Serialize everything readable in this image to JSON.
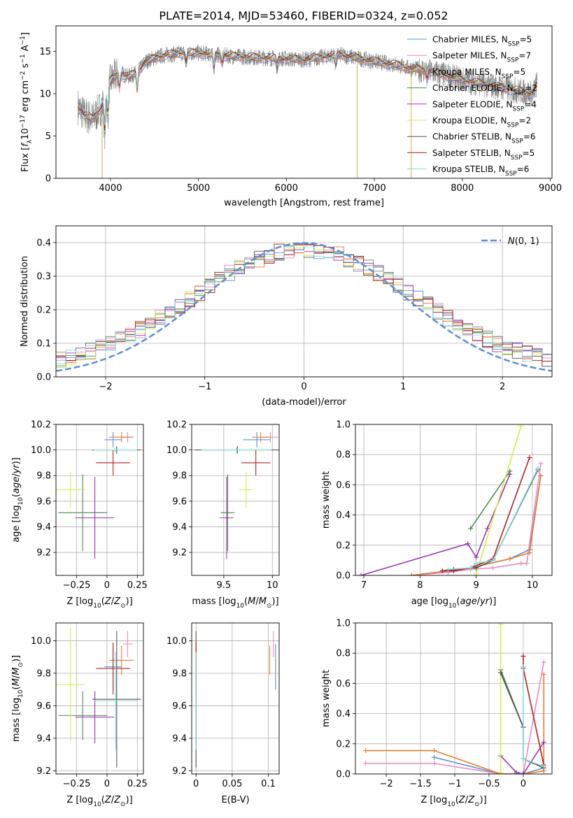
{
  "figure": {
    "title": "PLATE=2014, MJD=53460, FIBERID=0324, z=0.052"
  },
  "colors": {
    "Chabrier MILES": "#5b8fd9",
    "Salpeter MILES": "#e98ac6",
    "Kroupa MILES": "#e87e2c",
    "Chabrier ELODIE": "#4e8a55",
    "Salpeter ELODIE": "#9a36b5",
    "Kroupa ELODIE": "#d4ee4c",
    "Chabrier STELIB": "#555555",
    "Salpeter STELIB": "#b41e1e",
    "Kroupa STELIB": "#86dadf",
    "data_spectrum": "#808080",
    "normal_curve": "#5b8fd9"
  },
  "chart_data": [
    {
      "id": "spectrum",
      "type": "line",
      "xlabel": "wavelength [Angstrom, rest frame]",
      "ylabel": "Flux [f_λ10^-17 erg cm^-2 s^-1 A^-1]",
      "xlim": [
        3380,
        9020
      ],
      "ylim": [
        0,
        18
      ],
      "xticks": [
        4000,
        5000,
        6000,
        7000,
        8000,
        9000
      ],
      "yticks": [
        0,
        5,
        10,
        15
      ],
      "legend_position": "top-right",
      "legend": [
        {
          "name": "Chabrier MILES",
          "nssp": "5"
        },
        {
          "name": "Salpeter MILES",
          "nssp": "7"
        },
        {
          "name": "Kroupa MILES",
          "nssp": "5"
        },
        {
          "name": "Chabrier ELODIE",
          "nssp": "2"
        },
        {
          "name": "Salpeter ELODIE",
          "nssp": "4"
        },
        {
          "name": "Kroupa ELODIE",
          "nssp": "2"
        },
        {
          "name": "Chabrier STELIB",
          "nssp": "6"
        },
        {
          "name": "Salpeter STELIB",
          "nssp": "5"
        },
        {
          "name": "Kroupa STELIB",
          "nssp": "6"
        }
      ],
      "continuum": {
        "x": [
          3630,
          3700,
          3800,
          3900,
          4000,
          4100,
          4200,
          4300,
          4400,
          4500,
          4600,
          4800,
          5000,
          5200,
          5400,
          5600,
          5800,
          6000,
          6200,
          6400,
          6600,
          6800,
          7000,
          7200,
          7400,
          7600,
          7800,
          8000,
          8200,
          8400,
          8600,
          8800,
          8850
        ],
        "y": [
          8.5,
          7.5,
          7.0,
          8.5,
          11.5,
          12.5,
          12.0,
          12.5,
          13.8,
          14.2,
          14.5,
          14.8,
          14.8,
          14.6,
          14.4,
          14.3,
          14.2,
          14.1,
          14.0,
          14.3,
          14.6,
          14.2,
          13.8,
          13.5,
          13.0,
          12.7,
          12.2,
          11.6,
          11.2,
          10.8,
          10.4,
          10.0,
          11.2
        ]
      }
    },
    {
      "id": "residuals",
      "type": "line",
      "xlabel": "(data-model)/error",
      "ylabel": "Normed distribution",
      "xlim": [
        -2.5,
        2.5
      ],
      "ylim": [
        0,
        0.45
      ],
      "xticks": [
        -2,
        -1,
        0,
        1,
        2
      ],
      "yticks": [
        0.0,
        0.1,
        0.2,
        0.3,
        0.4
      ],
      "reference_label": "N(0,1)",
      "legend_position": "top-right"
    },
    {
      "id": "age_vs_Z",
      "type": "scatter",
      "xlabel": "Z [log10(Z/Z⊙)]",
      "ylabel": "age  [log10(age/yr)]",
      "xlim": [
        -0.42,
        0.3
      ],
      "ylim": [
        9.02,
        10.2
      ],
      "xticks": [
        -0.25,
        0.0,
        0.25
      ],
      "yticks": [
        9.2,
        9.4,
        9.6,
        9.8,
        10.0,
        10.2
      ],
      "points": [
        {
          "model": "Chabrier MILES",
          "x": 0.05,
          "xerr": 0.07,
          "y": 10.08,
          "yerr": 0.06
        },
        {
          "model": "Salpeter MILES",
          "x": 0.17,
          "xerr": 0.04,
          "y": 10.1,
          "yerr": 0.04
        },
        {
          "model": "Kroupa MILES",
          "x": 0.12,
          "xerr": 0.1,
          "y": 10.1,
          "yerr": 0.04
        },
        {
          "model": "Chabrier ELODIE",
          "x": -0.2,
          "xerr": 0.2,
          "y": 9.51,
          "yerr": 0.3
        },
        {
          "model": "Salpeter ELODIE",
          "x": -0.1,
          "xerr": 0.16,
          "y": 9.47,
          "yerr": 0.32
        },
        {
          "model": "Kroupa ELODIE",
          "x": -0.3,
          "xerr": 0.12,
          "y": 9.69,
          "yerr": 0.14
        },
        {
          "model": "Chabrier STELIB",
          "x": 0.08,
          "xerr": 0.2,
          "y": 10.0,
          "yerr": 0.03
        },
        {
          "model": "Salpeter STELIB",
          "x": 0.05,
          "xerr": 0.14,
          "y": 9.9,
          "yerr": 0.1
        },
        {
          "model": "Kroupa STELIB",
          "x": 0.07,
          "xerr": 0.18,
          "y": 10.0,
          "yerr": 0.02
        }
      ]
    },
    {
      "id": "age_vs_mass",
      "type": "scatter",
      "xlabel": "mass [log10(M/M⊙)]",
      "ylabel": "",
      "xlim": [
        9.17,
        10.07
      ],
      "ylim": [
        9.02,
        10.2
      ],
      "xticks": [
        9.5,
        10.0
      ],
      "yticks": [
        9.2,
        9.4,
        9.6,
        9.8,
        10.0,
        10.2
      ],
      "points": [
        {
          "model": "Chabrier MILES",
          "x": 9.84,
          "xerr": 0.14,
          "y": 10.08,
          "yerr": 0.06
        },
        {
          "model": "Salpeter MILES",
          "x": 9.98,
          "xerr": 0.08,
          "y": 10.1,
          "yerr": 0.04
        },
        {
          "model": "Kroupa MILES",
          "x": 9.88,
          "xerr": 0.09,
          "y": 10.1,
          "yerr": 0.04
        },
        {
          "model": "Chabrier ELODIE",
          "x": 9.54,
          "xerr": 0.07,
          "y": 9.51,
          "yerr": 0.3
        },
        {
          "model": "Salpeter ELODIE",
          "x": 9.53,
          "xerr": 0.07,
          "y": 9.47,
          "yerr": 0.32
        },
        {
          "model": "Kroupa ELODIE",
          "x": 9.73,
          "xerr": 0.07,
          "y": 9.69,
          "yerr": 0.14
        },
        {
          "model": "Chabrier STELIB",
          "x": 9.64,
          "xerr": 0.44,
          "y": 10.0,
          "yerr": 0.03
        },
        {
          "model": "Salpeter STELIB",
          "x": 9.83,
          "xerr": 0.15,
          "y": 9.9,
          "yerr": 0.1
        },
        {
          "model": "Kroupa STELIB",
          "x": 9.63,
          "xerr": 0.36,
          "y": 10.0,
          "yerr": 0.02
        }
      ]
    },
    {
      "id": "massweight_vs_age",
      "type": "line",
      "xlabel": "age  [log10(age/yr)]",
      "ylabel": "mass weight",
      "xlim": [
        6.85,
        10.35
      ],
      "ylim": [
        0,
        1.0
      ],
      "xticks": [
        7,
        8,
        9,
        10
      ],
      "yticks": [
        0.0,
        0.2,
        0.4,
        0.6,
        0.8,
        1.0
      ],
      "series": [
        {
          "model": "Chabrier MILES",
          "x": [
            7.85,
            8.5,
            8.9,
            9.6,
            9.95,
            10.15
          ],
          "y": [
            0.0,
            0.03,
            0.05,
            0.11,
            0.17,
            0.66
          ]
        },
        {
          "model": "Salpeter MILES",
          "x": [
            7.85,
            8.5,
            8.9,
            9.3,
            9.8,
            9.9,
            10.15
          ],
          "y": [
            0.0,
            0.02,
            0.04,
            0.05,
            0.08,
            0.08,
            0.74
          ]
        },
        {
          "model": "Kroupa MILES",
          "x": [
            7.85,
            8.5,
            8.9,
            9.6,
            9.95,
            10.15
          ],
          "y": [
            0.0,
            0.03,
            0.05,
            0.11,
            0.15,
            0.66
          ]
        },
        {
          "model": "Chabrier ELODIE",
          "x": [
            8.9,
            9.6
          ],
          "y": [
            0.31,
            0.69
          ]
        },
        {
          "model": "Salpeter ELODIE",
          "x": [
            6.95,
            8.85,
            9.0,
            9.2,
            9.6
          ],
          "y": [
            0.0,
            0.21,
            0.12,
            0.31,
            0.67
          ]
        },
        {
          "model": "Kroupa ELODIE",
          "x": [
            9.0,
            9.8
          ],
          "y": [
            0.01,
            0.99
          ]
        },
        {
          "model": "Chabrier STELIB",
          "x": [
            8.4,
            8.6,
            9.0,
            9.3,
            10.1
          ],
          "y": [
            0.03,
            0.04,
            0.05,
            0.1,
            0.7
          ]
        },
        {
          "model": "Salpeter STELIB",
          "x": [
            8.4,
            8.6,
            8.9,
            9.3,
            9.95
          ],
          "y": [
            0.03,
            0.03,
            0.05,
            0.11,
            0.78
          ]
        },
        {
          "model": "Kroupa STELIB",
          "x": [
            8.5,
            8.9,
            9.0,
            9.3,
            10.1
          ],
          "y": [
            0.04,
            0.05,
            0.08,
            0.1,
            0.71
          ]
        }
      ]
    },
    {
      "id": "mass_vs_Z",
      "type": "scatter",
      "xlabel": "Z [log10(Z/Z⊙)]",
      "ylabel": "mass [log10(M/M⊙)]",
      "xlim": [
        -0.42,
        0.3
      ],
      "ylim": [
        9.18,
        10.11
      ],
      "xticks": [
        -0.25,
        0.0,
        0.25
      ],
      "yticks": [
        9.2,
        9.4,
        9.6,
        9.8,
        10.0
      ],
      "points": [
        {
          "model": "Chabrier MILES",
          "x": 0.05,
          "xerr": 0.07,
          "y": 9.84,
          "yerr": 0.14
        },
        {
          "model": "Salpeter MILES",
          "x": 0.17,
          "xerr": 0.04,
          "y": 9.98,
          "yerr": 0.08
        },
        {
          "model": "Kroupa MILES",
          "x": 0.12,
          "xerr": 0.1,
          "y": 9.88,
          "yerr": 0.09
        },
        {
          "model": "Chabrier ELODIE",
          "x": -0.2,
          "xerr": 0.2,
          "y": 9.54,
          "yerr": 0.15
        },
        {
          "model": "Salpeter ELODIE",
          "x": -0.1,
          "xerr": 0.16,
          "y": 9.53,
          "yerr": 0.16
        },
        {
          "model": "Kroupa ELODIE",
          "x": -0.3,
          "xerr": 0.12,
          "y": 9.73,
          "yerr": 0.35
        },
        {
          "model": "Chabrier STELIB",
          "x": 0.08,
          "xerr": 0.2,
          "y": 9.64,
          "yerr": 0.42
        },
        {
          "model": "Salpeter STELIB",
          "x": 0.05,
          "xerr": 0.14,
          "y": 9.83,
          "yerr": 0.16
        },
        {
          "model": "Kroupa STELIB",
          "x": 0.07,
          "xerr": 0.18,
          "y": 9.63,
          "yerr": 0.3
        }
      ]
    },
    {
      "id": "mass_vs_ebv",
      "type": "scatter",
      "xlabel": "E(B-V)",
      "ylabel": "",
      "xlim": [
        -0.006,
        0.115
      ],
      "ylim": [
        9.18,
        10.11
      ],
      "xticks": [
        0.0,
        0.05,
        0.1
      ],
      "yticks": [
        9.2,
        9.4,
        9.6,
        9.8,
        10.0
      ],
      "points": [
        {
          "model": "Chabrier MILES",
          "x": 0.11,
          "y": 9.84,
          "yerr": 0.14
        },
        {
          "model": "Salpeter MILES",
          "x": 0.107,
          "y": 9.98,
          "yerr": 0.08
        },
        {
          "model": "Kroupa MILES",
          "x": 0.102,
          "y": 9.88,
          "yerr": 0.09
        },
        {
          "model": "Chabrier ELODIE",
          "x": 0.0,
          "y": 9.54,
          "yerr": 0.15
        },
        {
          "model": "Salpeter ELODIE",
          "x": 0.0,
          "y": 9.53,
          "yerr": 0.16
        },
        {
          "model": "Kroupa ELODIE",
          "x": 0.0,
          "y": 9.73,
          "yerr": 0.35
        },
        {
          "model": "Chabrier STELIB",
          "x": 0.0,
          "y": 9.64,
          "yerr": 0.42
        },
        {
          "model": "Salpeter STELIB",
          "x": 0.0,
          "y": 9.83,
          "yerr": 0.16
        },
        {
          "model": "Kroupa STELIB",
          "x": 0.0,
          "y": 9.63,
          "yerr": 0.3
        }
      ]
    },
    {
      "id": "massweight_vs_Z",
      "type": "line",
      "xlabel": "Z [log10(Z/Z⊙)]",
      "ylabel": "mass weight",
      "xlim": [
        -2.45,
        0.42
      ],
      "ylim": [
        0,
        1.0
      ],
      "xticks": [
        -2.0,
        -1.5,
        -1.0,
        -0.5,
        0.0
      ],
      "yticks": [
        0.0,
        0.2,
        0.4,
        0.6,
        0.8,
        1.0
      ],
      "series": [
        {
          "model": "Chabrier MILES",
          "x": [
            -1.3,
            -0.33,
            0.0,
            0.3
          ],
          "y": [
            0.11,
            0.0,
            0.0,
            0.04
          ]
        },
        {
          "model": "Salpeter MILES",
          "x": [
            -2.3,
            -1.3,
            -0.33,
            0.0,
            0.3
          ],
          "y": [
            0.07,
            0.07,
            0.0,
            0.0,
            0.74
          ]
        },
        {
          "model": "Kroupa MILES",
          "x": [
            -2.3,
            -1.3,
            -0.33,
            0.0,
            0.3,
            0.3
          ],
          "y": [
            0.155,
            0.155,
            0.0,
            0.0,
            0.02,
            0.66
          ]
        },
        {
          "model": "Chabrier ELODIE",
          "x": [
            -0.33,
            0.0
          ],
          "y": [
            0.69,
            0.31
          ]
        },
        {
          "model": "Salpeter ELODIE",
          "x": [
            -0.33,
            -0.1,
            0.0,
            0.3
          ],
          "y": [
            0.12,
            0.01,
            0.0,
            0.21
          ]
        },
        {
          "model": "Kroupa ELODIE",
          "x": [
            -0.33,
            -0.33
          ],
          "y": [
            0.99,
            0.01
          ]
        },
        {
          "model": "Chabrier STELIB",
          "x": [
            -0.33,
            0.0,
            0.0,
            0.3
          ],
          "y": [
            0.67,
            0.31,
            0.1,
            0.04
          ]
        },
        {
          "model": "Salpeter STELIB",
          "x": [
            0.0,
            0.0,
            0.3
          ],
          "y": [
            0.78,
            0.7,
            0.06
          ]
        },
        {
          "model": "Kroupa STELIB",
          "x": [
            0.0,
            0.0,
            0.3
          ],
          "y": [
            0.71,
            0.1,
            0.05
          ]
        }
      ]
    }
  ]
}
